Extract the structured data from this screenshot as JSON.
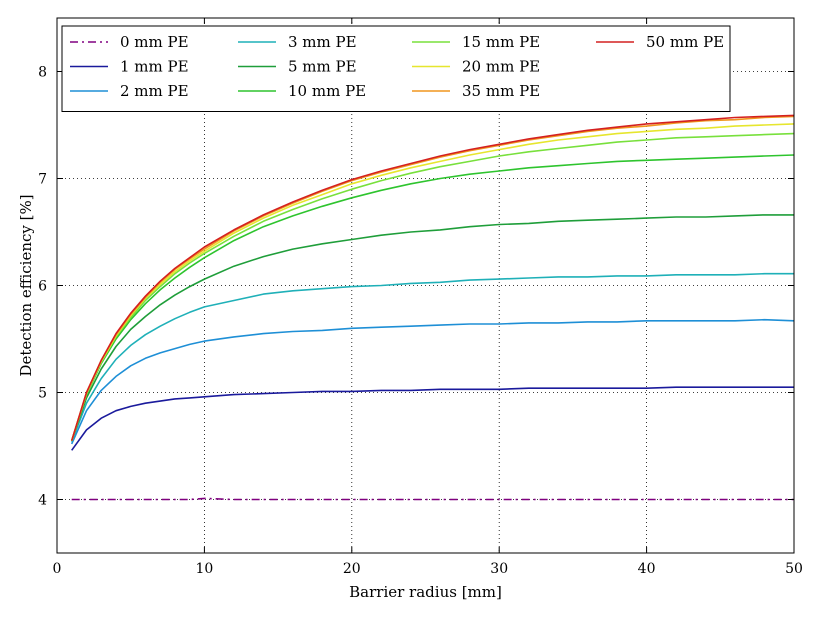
{
  "chart_data": {
    "type": "line",
    "title": "",
    "xlabel": "Barrier radius [mm]",
    "ylabel": "Detection efficiency [%]",
    "xlim": [
      0,
      50
    ],
    "ylim": [
      3.5,
      8.5
    ],
    "xticks": [
      0,
      10,
      20,
      30,
      40,
      50
    ],
    "yticks": [
      4,
      5,
      6,
      7,
      8
    ],
    "xtick_labels": [
      "0",
      "10",
      "20",
      "30",
      "40",
      "50"
    ],
    "ytick_labels": [
      "4",
      "5",
      "6",
      "7",
      "8"
    ],
    "grid": "dotted",
    "legend_placement": "top-left",
    "legend_columns": 4,
    "x": [
      1,
      2,
      3,
      4,
      5,
      6,
      7,
      8,
      9,
      10,
      12,
      14,
      16,
      18,
      20,
      22,
      24,
      26,
      28,
      30,
      32,
      34,
      36,
      38,
      40,
      42,
      44,
      46,
      48,
      50
    ],
    "series": [
      {
        "name": "0 mm PE",
        "color": "#800080",
        "dash": "dashdot",
        "values": [
          4.0,
          4.0,
          4.0,
          4.0,
          4.0,
          4.0,
          4.0,
          4.0,
          4.0,
          4.01,
          4.0,
          4.0,
          4.0,
          4.0,
          4.0,
          4.0,
          4.0,
          4.0,
          4.0,
          4.0,
          4.0,
          4.0,
          4.0,
          4.0,
          4.0,
          4.0,
          4.0,
          4.0,
          4.0,
          4.0
        ]
      },
      {
        "name": "1 mm PE",
        "color": "#1a1a9c",
        "dash": "solid",
        "values": [
          4.46,
          4.65,
          4.76,
          4.83,
          4.87,
          4.9,
          4.92,
          4.94,
          4.95,
          4.96,
          4.98,
          4.99,
          5.0,
          5.01,
          5.01,
          5.02,
          5.02,
          5.03,
          5.03,
          5.03,
          5.04,
          5.04,
          5.04,
          5.04,
          5.04,
          5.05,
          5.05,
          5.05,
          5.05,
          5.05
        ]
      },
      {
        "name": "2 mm PE",
        "color": "#1e8fd6",
        "dash": "solid",
        "values": [
          4.52,
          4.83,
          5.02,
          5.15,
          5.25,
          5.32,
          5.37,
          5.41,
          5.45,
          5.48,
          5.52,
          5.55,
          5.57,
          5.58,
          5.6,
          5.61,
          5.62,
          5.63,
          5.64,
          5.64,
          5.65,
          5.65,
          5.66,
          5.66,
          5.67,
          5.67,
          5.67,
          5.67,
          5.68,
          5.67
        ]
      },
      {
        "name": "3 mm PE",
        "color": "#1fb0b8",
        "dash": "solid",
        "values": [
          4.54,
          4.9,
          5.13,
          5.31,
          5.44,
          5.54,
          5.62,
          5.69,
          5.75,
          5.8,
          5.86,
          5.92,
          5.95,
          5.97,
          5.99,
          6.0,
          6.02,
          6.03,
          6.05,
          6.06,
          6.07,
          6.08,
          6.08,
          6.09,
          6.09,
          6.1,
          6.1,
          6.1,
          6.11,
          6.11
        ]
      },
      {
        "name": "5 mm PE",
        "color": "#1f9e3a",
        "dash": "solid",
        "values": [
          4.55,
          4.95,
          5.22,
          5.43,
          5.59,
          5.71,
          5.82,
          5.91,
          5.99,
          6.06,
          6.18,
          6.27,
          6.34,
          6.39,
          6.43,
          6.47,
          6.5,
          6.52,
          6.55,
          6.57,
          6.58,
          6.6,
          6.61,
          6.62,
          6.63,
          6.64,
          6.64,
          6.65,
          6.66,
          6.66
        ]
      },
      {
        "name": "10 mm PE",
        "color": "#2ec42e",
        "dash": "solid",
        "values": [
          4.55,
          4.98,
          5.27,
          5.5,
          5.68,
          5.83,
          5.96,
          6.07,
          6.17,
          6.26,
          6.42,
          6.55,
          6.65,
          6.74,
          6.82,
          6.89,
          6.95,
          7.0,
          7.04,
          7.07,
          7.1,
          7.12,
          7.14,
          7.16,
          7.17,
          7.18,
          7.19,
          7.2,
          7.21,
          7.22
        ]
      },
      {
        "name": "15 mm PE",
        "color": "#78e03c",
        "dash": "solid",
        "values": [
          4.55,
          4.99,
          5.28,
          5.52,
          5.7,
          5.86,
          5.99,
          6.11,
          6.21,
          6.3,
          6.46,
          6.6,
          6.71,
          6.81,
          6.9,
          6.98,
          7.05,
          7.11,
          7.16,
          7.21,
          7.25,
          7.28,
          7.31,
          7.34,
          7.36,
          7.38,
          7.39,
          7.4,
          7.41,
          7.42
        ]
      },
      {
        "name": "20 mm PE",
        "color": "#e6e62e",
        "dash": "solid",
        "values": [
          4.55,
          4.99,
          5.29,
          5.53,
          5.72,
          5.88,
          6.01,
          6.13,
          6.23,
          6.32,
          6.49,
          6.63,
          6.75,
          6.85,
          6.95,
          7.03,
          7.1,
          7.16,
          7.22,
          7.27,
          7.32,
          7.36,
          7.39,
          7.42,
          7.44,
          7.46,
          7.47,
          7.49,
          7.5,
          7.51
        ]
      },
      {
        "name": "35 mm PE",
        "color": "#f0961e",
        "dash": "solid",
        "values": [
          4.55,
          5.0,
          5.3,
          5.54,
          5.73,
          5.89,
          6.03,
          6.15,
          6.25,
          6.34,
          6.51,
          6.65,
          6.77,
          6.88,
          6.98,
          7.06,
          7.13,
          7.2,
          7.26,
          7.31,
          7.36,
          7.4,
          7.44,
          7.47,
          7.49,
          7.52,
          7.54,
          7.55,
          7.57,
          7.58
        ]
      },
      {
        "name": "50 mm PE",
        "color": "#d42020",
        "dash": "solid",
        "values": [
          4.55,
          5.0,
          5.3,
          5.55,
          5.74,
          5.9,
          6.04,
          6.16,
          6.26,
          6.36,
          6.52,
          6.66,
          6.78,
          6.89,
          6.99,
          7.07,
          7.14,
          7.21,
          7.27,
          7.32,
          7.37,
          7.41,
          7.45,
          7.48,
          7.51,
          7.53,
          7.55,
          7.57,
          7.58,
          7.59
        ]
      }
    ]
  }
}
